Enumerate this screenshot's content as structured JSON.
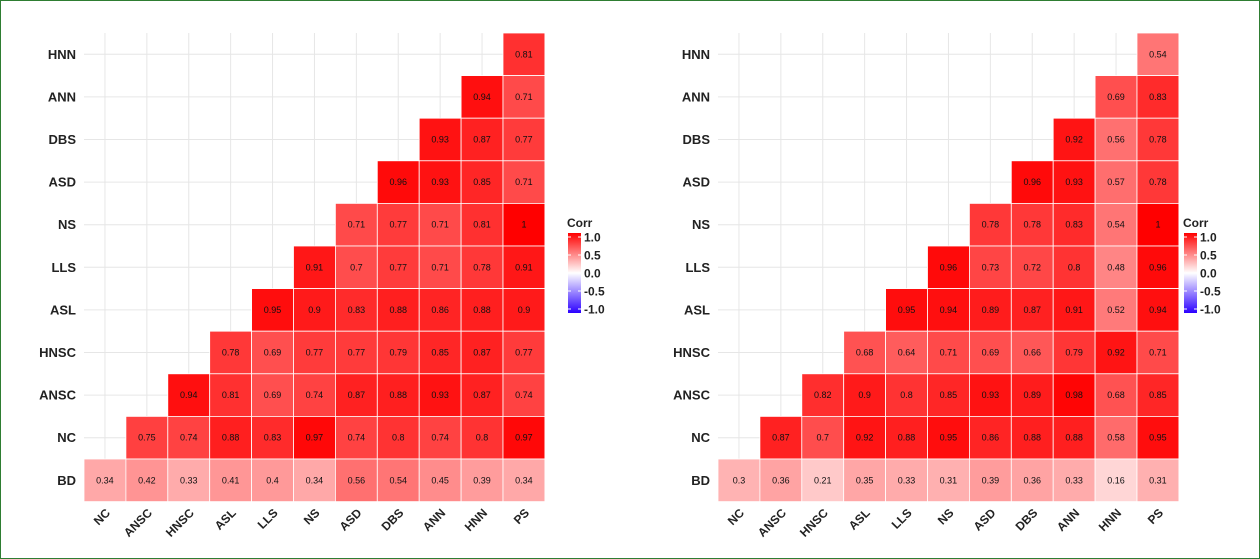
{
  "colors": {
    "low": "#2b00ff",
    "mid": "#ffffff",
    "high": "#ff0000",
    "grid": "#e6e6e6",
    "border": "#2e7d32"
  },
  "chart_data": [
    {
      "type": "heatmap",
      "variables": [
        "NC",
        "ANSC",
        "HNSC",
        "ASL",
        "LLS",
        "NS",
        "ASD",
        "DBS",
        "ANN",
        "HNN",
        "PS"
      ],
      "rows": [
        "HNN",
        "ANN",
        "DBS",
        "ASD",
        "NS",
        "LLS",
        "ASL",
        "HNSC",
        "ANSC",
        "NC",
        "BD"
      ],
      "columns": [
        "NC",
        "ANSC",
        "HNSC",
        "ASL",
        "LLS",
        "NS",
        "ASD",
        "DBS",
        "ANN",
        "HNN",
        "PS"
      ],
      "legend": {
        "title": "Corr",
        "ticks": [
          "1.0",
          "0.5",
          "0.0",
          "-0.5",
          "-1.0"
        ],
        "range": [
          -1,
          1
        ],
        "placement": "right"
      },
      "cells": [
        [
          "",
          "",
          "",
          "",
          "",
          "",
          "",
          "",
          "",
          "",
          "0.81"
        ],
        [
          "",
          "",
          "",
          "",
          "",
          "",
          "",
          "",
          "",
          "0.94",
          "0.71"
        ],
        [
          "",
          "",
          "",
          "",
          "",
          "",
          "",
          "",
          "0.93",
          "0.87",
          "0.77"
        ],
        [
          "",
          "",
          "",
          "",
          "",
          "",
          "",
          "0.96",
          "0.93",
          "0.85",
          "0.71"
        ],
        [
          "",
          "",
          "",
          "",
          "",
          "",
          "0.71",
          "0.77",
          "0.71",
          "0.81",
          "1"
        ],
        [
          "",
          "",
          "",
          "",
          "",
          "0.91",
          "0.7",
          "0.77",
          "0.71",
          "0.78",
          "0.91"
        ],
        [
          "",
          "",
          "",
          "",
          "0.95",
          "0.9",
          "0.83",
          "0.88",
          "0.86",
          "0.88",
          "0.9"
        ],
        [
          "",
          "",
          "",
          "0.78",
          "0.69",
          "0.77",
          "0.77",
          "0.79",
          "0.85",
          "0.87",
          "0.77"
        ],
        [
          "",
          "",
          "0.94",
          "0.81",
          "0.69",
          "0.74",
          "0.87",
          "0.88",
          "0.93",
          "0.87",
          "0.74"
        ],
        [
          "",
          "0.75",
          "0.74",
          "0.88",
          "0.83",
          "0.97",
          "0.74",
          "0.8",
          "0.74",
          "0.8",
          "0.97"
        ],
        [
          "0.34",
          "0.42",
          "0.33",
          "0.41",
          "0.4",
          "0.34",
          "0.56",
          "0.54",
          "0.45",
          "0.39",
          "0.34"
        ]
      ]
    },
    {
      "type": "heatmap",
      "variables": [
        "NC",
        "ANSC",
        "HNSC",
        "ASL",
        "LLS",
        "NS",
        "ASD",
        "DBS",
        "ANN",
        "HNN",
        "PS"
      ],
      "rows": [
        "HNN",
        "ANN",
        "DBS",
        "ASD",
        "NS",
        "LLS",
        "ASL",
        "HNSC",
        "ANSC",
        "NC",
        "BD"
      ],
      "columns": [
        "NC",
        "ANSC",
        "HNSC",
        "ASL",
        "LLS",
        "NS",
        "ASD",
        "DBS",
        "ANN",
        "HNN",
        "PS"
      ],
      "legend": {
        "title": "Corr",
        "ticks": [
          "1.0",
          "0.5",
          "0.0",
          "-0.5",
          "-1.0"
        ],
        "range": [
          -1,
          1
        ],
        "placement": "right"
      },
      "cells": [
        [
          "",
          "",
          "",
          "",
          "",
          "",
          "",
          "",
          "",
          "",
          "0.54"
        ],
        [
          "",
          "",
          "",
          "",
          "",
          "",
          "",
          "",
          "",
          "0.69",
          "0.83"
        ],
        [
          "",
          "",
          "",
          "",
          "",
          "",
          "",
          "",
          "0.92",
          "0.56",
          "0.78"
        ],
        [
          "",
          "",
          "",
          "",
          "",
          "",
          "",
          "0.96",
          "0.93",
          "0.57",
          "0.78"
        ],
        [
          "",
          "",
          "",
          "",
          "",
          "",
          "0.78",
          "0.78",
          "0.83",
          "0.54",
          "1"
        ],
        [
          "",
          "",
          "",
          "",
          "",
          "0.96",
          "0.73",
          "0.72",
          "0.8",
          "0.48",
          "0.96"
        ],
        [
          "",
          "",
          "",
          "",
          "0.95",
          "0.94",
          "0.89",
          "0.87",
          "0.91",
          "0.52",
          "0.94"
        ],
        [
          "",
          "",
          "",
          "0.68",
          "0.64",
          "0.71",
          "0.69",
          "0.66",
          "0.79",
          "0.92",
          "0.71"
        ],
        [
          "",
          "",
          "0.82",
          "0.9",
          "0.8",
          "0.85",
          "0.93",
          "0.89",
          "0.98",
          "0.68",
          "0.85"
        ],
        [
          "",
          "0.87",
          "0.7",
          "0.92",
          "0.88",
          "0.95",
          "0.86",
          "0.88",
          "0.88",
          "0.58",
          "0.95"
        ],
        [
          "0.3",
          "0.36",
          "0.21",
          "0.35",
          "0.33",
          "0.31",
          "0.39",
          "0.36",
          "0.33",
          "0.16",
          "0.31"
        ]
      ]
    }
  ]
}
